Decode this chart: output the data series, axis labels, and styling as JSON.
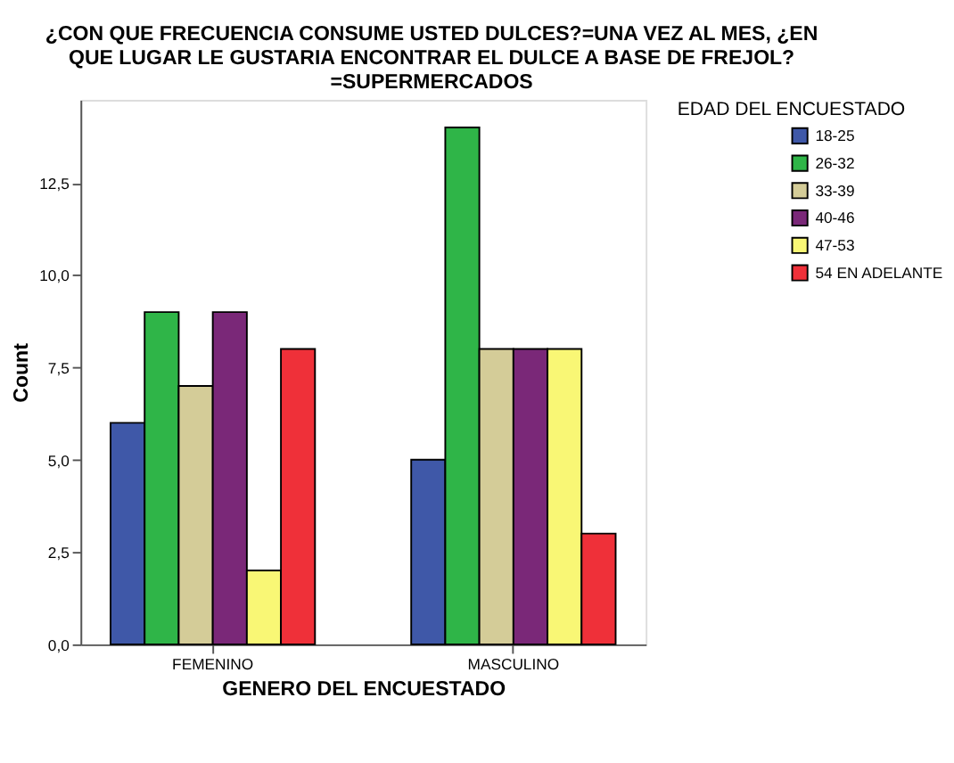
{
  "chart_data": {
    "type": "bar",
    "title": "¿CON QUE FRECUENCIA CONSUME USTED DULCES?=UNA VEZ AL MES, ¿EN QUE LUGAR LE GUSTARIA ENCONTRAR EL DULCE A BASE DE FREJOL? =SUPERMERCADOS",
    "xlabel": "GENERO DEL ENCUESTADO",
    "ylabel": "Count",
    "legend_title": "EDAD DEL ENCUESTADO",
    "categories": [
      "FEMENINO",
      "MASCULINO"
    ],
    "series": [
      {
        "name": "18-25",
        "color": "#3f58a8",
        "values": [
          6,
          5
        ]
      },
      {
        "name": "26-32",
        "color": "#2fb548",
        "values": [
          9,
          14
        ]
      },
      {
        "name": "33-39",
        "color": "#d4cc98",
        "values": [
          7,
          8
        ]
      },
      {
        "name": "40-46",
        "color": "#7a2878",
        "values": [
          9,
          8
        ]
      },
      {
        "name": "47-53",
        "color": "#f9f775",
        "values": [
          2,
          8
        ]
      },
      {
        "name": "54 EN ADELANTE",
        "color": "#ef3039",
        "values": [
          8,
          3
        ]
      }
    ],
    "ylim": [
      0,
      14.75
    ],
    "yticks": [
      {
        "value": 0,
        "label": "0,0"
      },
      {
        "value": 2.5,
        "label": "2,5"
      },
      {
        "value": 5,
        "label": "5,0"
      },
      {
        "value": 7.5,
        "label": "7,5"
      },
      {
        "value": 10,
        "label": "10,0"
      },
      {
        "value": 12.5,
        "label": "12,5"
      }
    ],
    "grid": false,
    "legend": "right"
  }
}
